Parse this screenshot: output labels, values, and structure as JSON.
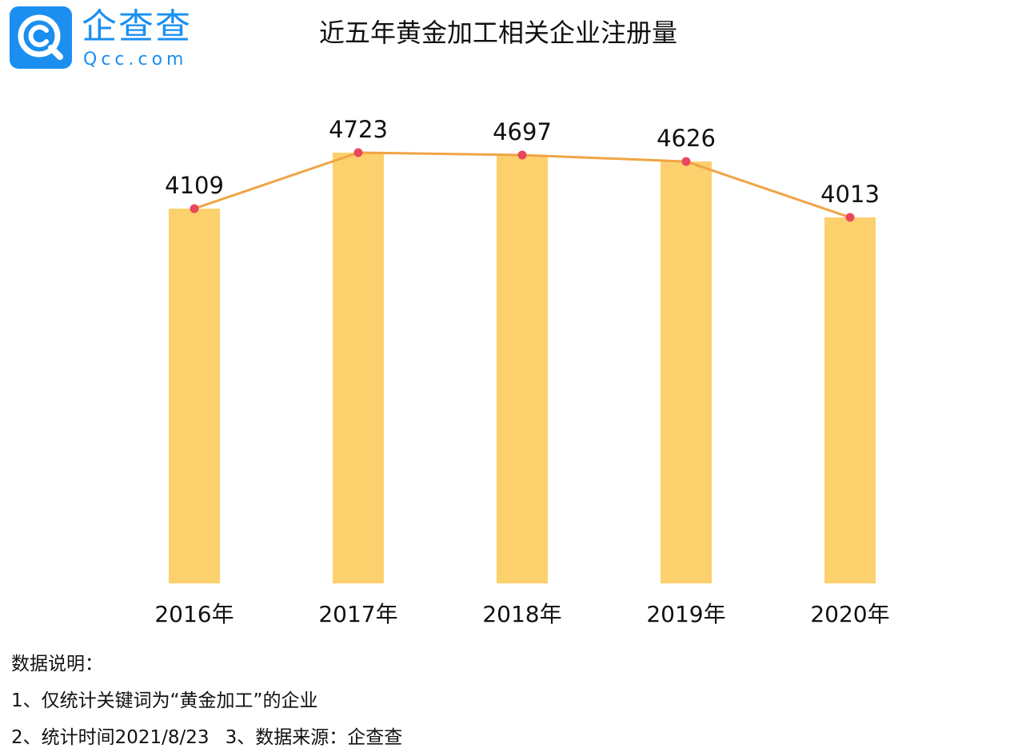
{
  "logo": {
    "name": "企查查",
    "domain": "Qcc.com",
    "icon": "qcc-logo-icon",
    "colors": {
      "mark": "#1a8ff0",
      "text": "#1a8ff0"
    }
  },
  "chart_data": {
    "type": "bar",
    "title": "近五年黄金加工相关企业注册量",
    "categories": [
      "2016年",
      "2017年",
      "2018年",
      "2019年",
      "2020年"
    ],
    "series": [
      {
        "values": [
          4109,
          4723,
          4697,
          4626,
          4013
        ],
        "render": "bar",
        "color": "#fdd06e"
      },
      {
        "values": [
          4109,
          4723,
          4697,
          4626,
          4013
        ],
        "render": "line",
        "color": "#f0a445",
        "marker_color": "#e8485c"
      }
    ],
    "data_labels": [
      "4109",
      "4723",
      "4697",
      "4626",
      "4013"
    ],
    "xlabel": "",
    "ylabel": "",
    "y_axis_visible": false,
    "grid": false,
    "legend": "none"
  },
  "notes": {
    "heading": "数据说明：",
    "line1": "1、仅统计关键词为“黄金加工”的企业",
    "line2a": "2、统计时间2021/8/23",
    "line2b": "3、数据来源：企查查"
  }
}
